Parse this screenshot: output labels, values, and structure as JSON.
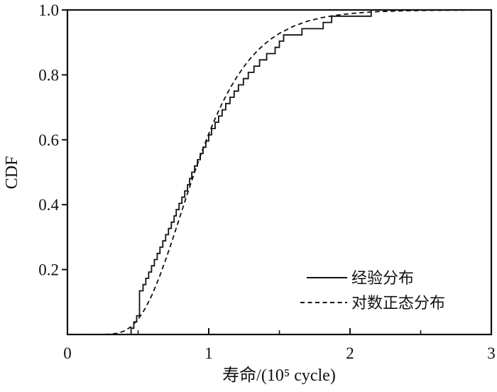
{
  "figure": {
    "background": "#ffffff",
    "ink": "#111111"
  },
  "chart_data": {
    "type": "line",
    "title": "",
    "xlabel": "寿命/(10⁵ cycle)",
    "ylabel": "CDF",
    "xlim": [
      0,
      3
    ],
    "ylim": [
      0,
      1.0
    ],
    "grid": false,
    "legend_position": "lower right",
    "x_major_ticks": [
      0,
      1,
      2,
      3
    ],
    "x_major_tick_labels": [
      "0",
      "1",
      "2",
      "3"
    ],
    "x_minor_ticks": [
      0.5,
      1.5,
      2.5
    ],
    "y_major_ticks": [
      0.2,
      0.4,
      0.6,
      0.8,
      1.0
    ],
    "y_major_tick_labels": [
      "0.2",
      "0.4",
      "0.6",
      "0.8",
      "1.0"
    ],
    "series": [
      {
        "name": "经验分布",
        "type": "empirical_step_cdf",
        "line_style": "solid",
        "color": "#111111",
        "samples": [
          0.45,
          0.47,
          0.49,
          0.51,
          0.51,
          0.51,
          0.51,
          0.535,
          0.555,
          0.575,
          0.595,
          0.615,
          0.635,
          0.655,
          0.675,
          0.695,
          0.715,
          0.735,
          0.755,
          0.77,
          0.79,
          0.81,
          0.83,
          0.85,
          0.865,
          0.88,
          0.9,
          0.92,
          0.94,
          0.96,
          0.98,
          1.0,
          1.02,
          1.045,
          1.07,
          1.095,
          1.12,
          1.15,
          1.18,
          1.21,
          1.245,
          1.28,
          1.32,
          1.36,
          1.41,
          1.47,
          1.5,
          1.53,
          1.66,
          1.81,
          1.87,
          2.15
        ]
      },
      {
        "name": "对数正态分布",
        "type": "smooth_cdf",
        "line_style": "dashed",
        "color": "#111111",
        "distribution": "lognormal",
        "median": 0.9,
        "sigma_ln": 0.35,
        "x": [
          0.1,
          0.15,
          0.2,
          0.25,
          0.3,
          0.35,
          0.4,
          0.45,
          0.5,
          0.55,
          0.6,
          0.65,
          0.7,
          0.75,
          0.8,
          0.85,
          0.9,
          0.95,
          1.0,
          1.05,
          1.1,
          1.15,
          1.2,
          1.25,
          1.3,
          1.35,
          1.4,
          1.45,
          1.5,
          1.6,
          1.7,
          1.8,
          1.9,
          2.0,
          2.1,
          2.2,
          2.3,
          2.4,
          2.5,
          2.6,
          2.7,
          2.8,
          2.9
        ],
        "y": [
          0.0,
          0.0,
          0.0001,
          0.0002,
          0.0009,
          0.0035,
          0.0103,
          0.0238,
          0.0465,
          0.0797,
          0.1233,
          0.1762,
          0.2364,
          0.3012,
          0.3682,
          0.4351,
          0.5,
          0.5614,
          0.6183,
          0.6702,
          0.7168,
          0.7581,
          0.7944,
          0.826,
          0.8533,
          0.8767,
          0.8966,
          0.9135,
          0.9278,
          0.9499,
          0.9654,
          0.9762,
          0.9836,
          0.9887,
          0.9923,
          0.9947,
          0.9963,
          0.9975,
          0.9982,
          0.9988,
          0.9992,
          0.9994,
          0.9996
        ]
      }
    ],
    "legend": {
      "entries": [
        {
          "label": "经验分布",
          "style": "solid"
        },
        {
          "label": "对数正态分布",
          "style": "dashed"
        }
      ]
    }
  }
}
